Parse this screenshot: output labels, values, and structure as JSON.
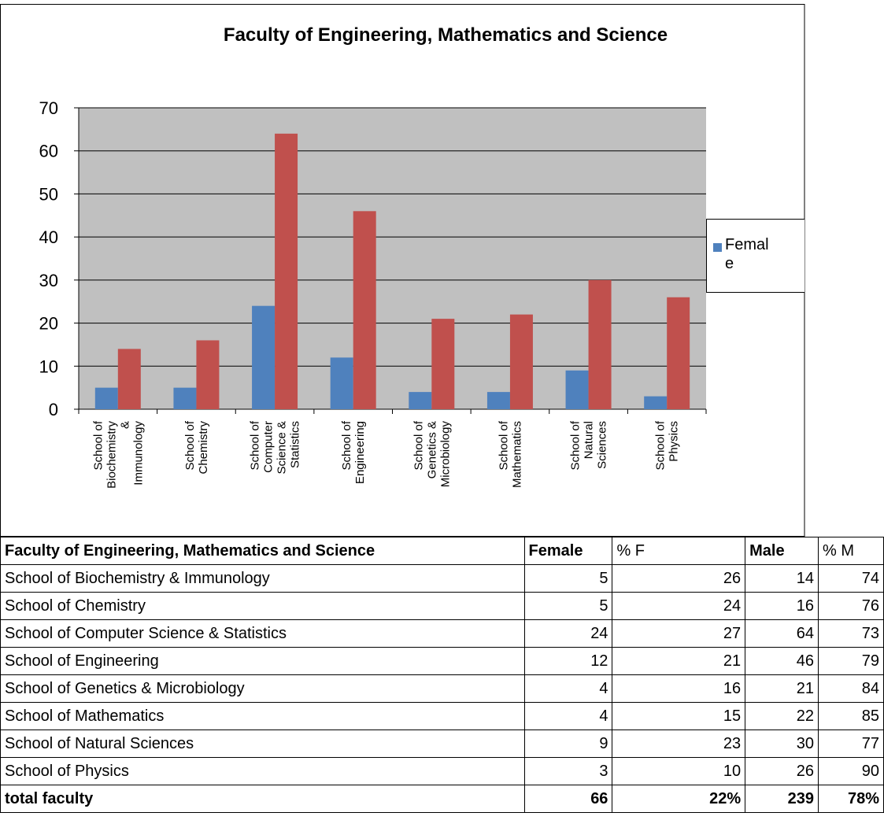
{
  "chart_data": {
    "type": "bar",
    "title": "Faculty of Engineering, Mathematics and Science",
    "categories": [
      [
        "School of",
        "Biochemistry",
        "&",
        "Immunology"
      ],
      [
        "School of",
        "Chemistry"
      ],
      [
        "School of",
        "Computer",
        "Science &",
        "Statistics"
      ],
      [
        "School of",
        "Engineering"
      ],
      [
        "School of",
        "Genetics &",
        "Microbiology"
      ],
      [
        "School of",
        "Mathematics"
      ],
      [
        "School of",
        "Natural",
        "Sciences"
      ],
      [
        "School of",
        "Physics"
      ]
    ],
    "series": [
      {
        "name": "Female",
        "color": "#4f81bd",
        "values": [
          5,
          5,
          24,
          12,
          4,
          4,
          9,
          3
        ]
      },
      {
        "color": "#c0504d",
        "values": [
          14,
          16,
          64,
          46,
          21,
          22,
          30,
          26
        ]
      }
    ],
    "ylim": [
      0,
      70
    ],
    "yticks": [
      0,
      10,
      20,
      30,
      40,
      50,
      60,
      70
    ],
    "grid": true,
    "legend": "right"
  },
  "table": {
    "header": [
      "Faculty of Engineering, Mathematics and Science",
      "Female",
      "% F",
      "Male",
      "% M"
    ],
    "rows": [
      [
        "School of Biochemistry & Immunology",
        5,
        26,
        14,
        74
      ],
      [
        "School of Chemistry",
        5,
        24,
        16,
        76
      ],
      [
        "School of Computer Science & Statistics",
        24,
        27,
        64,
        73
      ],
      [
        "School of Engineering",
        12,
        21,
        46,
        79
      ],
      [
        "School of Genetics & Microbiology",
        4,
        16,
        21,
        84
      ],
      [
        "School of Mathematics",
        4,
        15,
        22,
        85
      ],
      [
        "School of Natural Sciences",
        9,
        23,
        30,
        77
      ],
      [
        "School of Physics",
        3,
        10,
        26,
        90
      ]
    ],
    "total": [
      "total faculty",
      66,
      "22%",
      239,
      "78%"
    ]
  }
}
